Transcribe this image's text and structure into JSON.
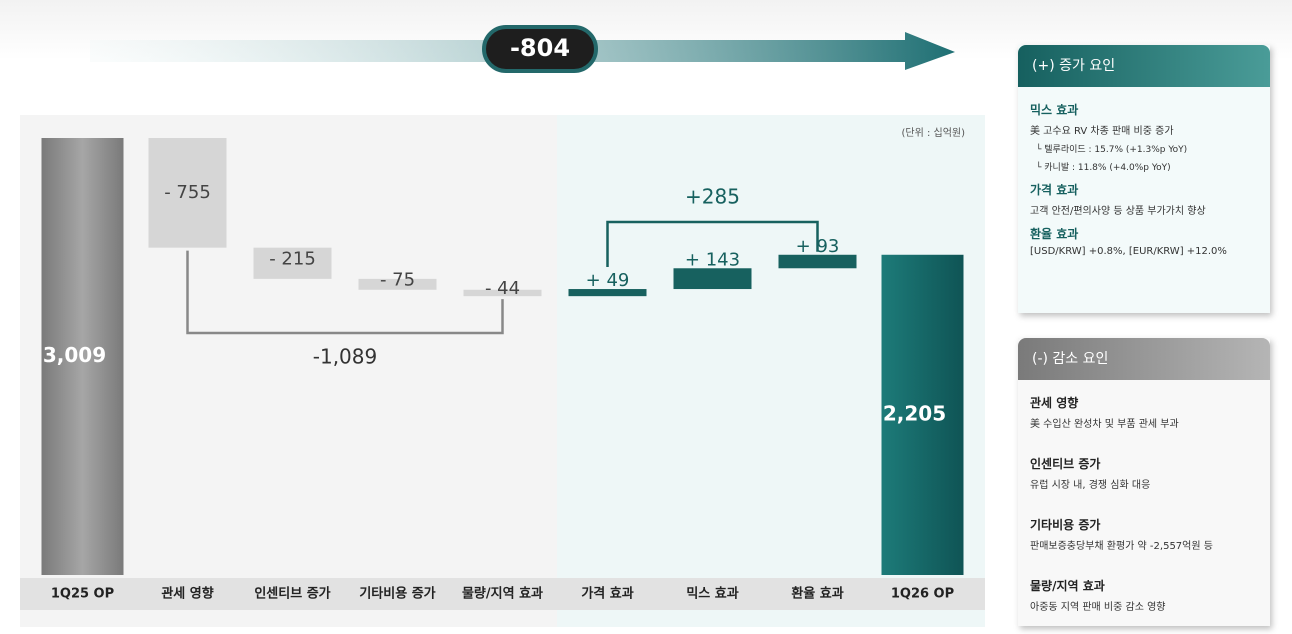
{
  "chart_data": {
    "type": "waterfall",
    "categories": [
      "1Q25 OP",
      "관세 영향",
      "인센티브 증가",
      "기타비용 증가",
      "물량/지역 효과",
      "가격 효과",
      "믹스 효과",
      "환율 효과",
      "1Q26 OP"
    ],
    "values": [
      3009,
      -755,
      -215,
      -75,
      -44,
      49,
      143,
      93,
      2205
    ],
    "value_labels": [
      "3,009",
      "- 755",
      "- 215",
      "- 75",
      "- 44",
      "+ 49",
      "+ 143",
      "+ 93",
      "2,205"
    ],
    "colors": {
      "start": "#8e8e8e",
      "decrease": "#d6d6d6",
      "increase": "#17615f",
      "end": "#17706e"
    },
    "annotations": {
      "total_change": "-804",
      "decrease_sum": "-1,089",
      "increase_sum": "+285",
      "unit": "(단위 : 십억원)"
    }
  },
  "panels": [
    {
      "title": "(+) 증가 요인",
      "items": [
        {
          "heading": "믹스 효과",
          "lines": [
            "美 고수요 RV 차종 판매 비중 증가",
            "└ 텔루라이드 : 15.7% (+1.3%p YoY)",
            "└ 카니발 : 11.8% (+4.0%p YoY)"
          ]
        },
        {
          "heading": "가격 효과",
          "lines": [
            "고객 안전/편의사양 등 상품 부가가치 향상"
          ]
        },
        {
          "heading": "환율 효과",
          "lines": [
            "[USD/KRW] +0.8%, [EUR/KRW] +12.0%"
          ]
        }
      ]
    },
    {
      "title": "(-) 감소 요인",
      "items": [
        {
          "heading": "관세 영향",
          "lines": [
            "美 수입산 완성차 및 부품 관세 부과"
          ]
        },
        {
          "heading": "인센티브 증가",
          "lines": [
            "유럽 시장 내, 경쟁 심화 대응"
          ]
        },
        {
          "heading": "기타비용 증가",
          "lines": [
            "판매보증충당부채 환평가 약 -2,557억원 등"
          ]
        },
        {
          "heading": "물량/지역 효과",
          "lines": [
            "아중동 지역 판매 비중 감소 영향"
          ]
        }
      ]
    }
  ]
}
